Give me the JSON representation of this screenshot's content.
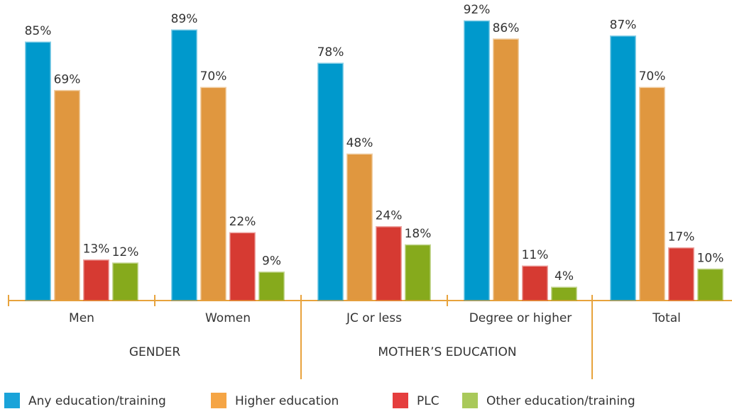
{
  "chart_data": {
    "type": "bar",
    "categories": [
      "Men",
      "Women",
      "JC or less",
      "Degree or higher",
      "Total"
    ],
    "groups": [
      "GENDER",
      "MOTHER’S EDUCATION"
    ],
    "ylim": [
      0,
      100
    ],
    "series": [
      {
        "name": "Any education/training",
        "color": "#0099cc",
        "legend_color": "#1aa3d9",
        "values": [
          85,
          89,
          78,
          92,
          87
        ],
        "value_labels": [
          "85%",
          "89%",
          "78%",
          "92%",
          "87%"
        ]
      },
      {
        "name": "Higher education",
        "color": "#e0973f",
        "legend_color": "#f5a545",
        "values": [
          69,
          70,
          48,
          86,
          70
        ],
        "value_labels": [
          "69%",
          "70%",
          "48%",
          "86%",
          "70%"
        ]
      },
      {
        "name": "PLC",
        "color": "#d63a32",
        "legend_color": "#e53e3e",
        "values": [
          13,
          22,
          24,
          11,
          17
        ],
        "value_labels": [
          "13%",
          "22%",
          "24%",
          "11%",
          "17%"
        ]
      },
      {
        "name": "Other education/training",
        "color": "#86aa1c",
        "legend_color": "#a9c95a",
        "values": [
          12,
          9,
          18,
          4,
          10
        ],
        "value_labels": [
          "12%",
          "9%",
          "18%",
          "4%",
          "10%"
        ]
      }
    ]
  }
}
